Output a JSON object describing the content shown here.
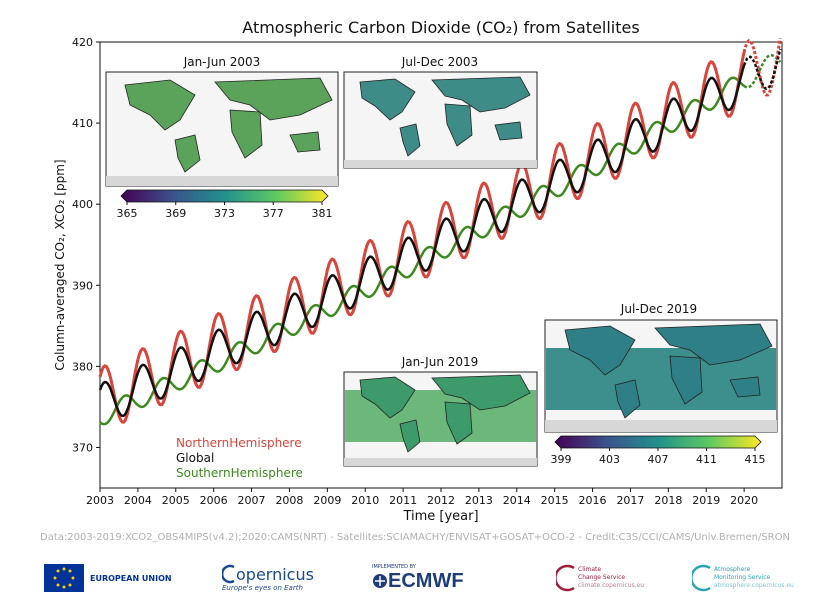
{
  "chart_data": {
    "type": "line",
    "title": "Atmospheric Carbon Dioxide (CO₂) from Satellites",
    "xlabel": "Time [year]",
    "ylabel": "Column-averaged CO₂, XCO₂ [ppm]",
    "xlim": [
      2003,
      2021
    ],
    "ylim": [
      365,
      420
    ],
    "xticks": [
      2003,
      2004,
      2005,
      2006,
      2007,
      2008,
      2009,
      2010,
      2011,
      2012,
      2013,
      2014,
      2015,
      2016,
      2017,
      2018,
      2019,
      2020
    ],
    "yticks": [
      370,
      380,
      390,
      400,
      410,
      420
    ],
    "grid": false,
    "legend_position": "lower-left",
    "series": [
      {
        "name": "NorthernHemisphere",
        "color": "#d9453b",
        "base": 375.8,
        "trend": 2.1,
        "amp": 4.0,
        "phase": 0.12,
        "nrt_from": 2020.0
      },
      {
        "name": "Global",
        "color": "#111111",
        "base": 375.2,
        "trend": 2.1,
        "amp": 2.6,
        "phase": 0.12,
        "nrt_from": 2020.0
      },
      {
        "name": "SouthernHemisphere",
        "color": "#3d8a1f",
        "base": 373.8,
        "trend": 2.1,
        "amp": 1.2,
        "phase": 0.65,
        "nrt_from": 2020.0
      }
    ],
    "insets": [
      {
        "title": "Jan-Jun 2003",
        "colorbar": {
          "ticks": [
            "365",
            "369",
            "373",
            "377",
            "381"
          ]
        }
      },
      {
        "title": "Jul-Dec 2003"
      },
      {
        "title": "Jan-Jun 2019"
      },
      {
        "title": "Jul-Dec 2019",
        "colorbar": {
          "ticks": [
            "399",
            "403",
            "407",
            "411",
            "415"
          ]
        }
      }
    ]
  },
  "credit": "Data:2003-2019:XCO2_OBS4MIPS(v4.2);2020:CAMS(NRT) - Satellites:SCIAMACHY/ENVISAT+GOSAT+OCO-2 - Credit:C3S/CCI/CAMS/Univ.Bremen/SRON",
  "logos": {
    "eu": "EUROPEAN UNION",
    "copernicus": "opernicus",
    "copernicus_tag": "Europe's eyes on Earth",
    "ecmwf": "ECMWF",
    "ecmwf_tag": "IMPLEMENTED BY",
    "c3s_1": "Climate",
    "c3s_2": "Change Service",
    "c3s_url": "climate.copernicus.eu",
    "cams_1": "Atmosphere",
    "cams_2": "Monitoring Service",
    "cams_url": "atmosphere.copernicus.eu"
  }
}
